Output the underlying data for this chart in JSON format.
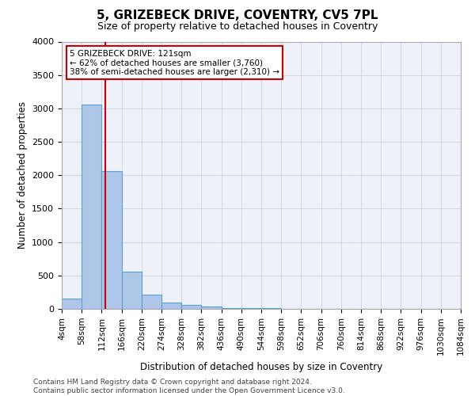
{
  "title": "5, GRIZEBECK DRIVE, COVENTRY, CV5 7PL",
  "subtitle": "Size of property relative to detached houses in Coventry",
  "xlabel": "Distribution of detached houses by size in Coventry",
  "ylabel": "Number of detached properties",
  "bar_values": [
    150,
    3060,
    2060,
    560,
    215,
    90,
    60,
    40,
    15,
    10,
    8,
    5,
    4,
    3,
    3,
    2,
    2,
    2,
    2,
    2
  ],
  "bin_edges": [
    4,
    58,
    112,
    166,
    220,
    274,
    328,
    382,
    436,
    490,
    544,
    598,
    652,
    706,
    760,
    814,
    868,
    922,
    976,
    1030,
    1084
  ],
  "tick_labels": [
    "4sqm",
    "58sqm",
    "112sqm",
    "166sqm",
    "220sqm",
    "274sqm",
    "328sqm",
    "382sqm",
    "436sqm",
    "490sqm",
    "544sqm",
    "598sqm",
    "652sqm",
    "706sqm",
    "760sqm",
    "814sqm",
    "868sqm",
    "922sqm",
    "976sqm",
    "1030sqm",
    "1084sqm"
  ],
  "bar_color": "#aec6e8",
  "bar_edge_color": "#5a9fd4",
  "grid_color": "#d0d8e8",
  "background_color": "#eef2f8",
  "property_size": 121,
  "red_line_x": 121,
  "annotation_text1": "5 GRIZEBECK DRIVE: 121sqm",
  "annotation_text2": "← 62% of detached houses are smaller (3,760)",
  "annotation_text3": "38% of semi-detached houses are larger (2,310) →",
  "annotation_box_color": "#ffffff",
  "annotation_box_edge": "#cc0000",
  "red_line_color": "#cc0000",
  "ylim": [
    0,
    4000
  ],
  "yticks": [
    0,
    500,
    1000,
    1500,
    2000,
    2500,
    3000,
    3500,
    4000
  ],
  "footer1": "Contains HM Land Registry data © Crown copyright and database right 2024.",
  "footer2": "Contains public sector information licensed under the Open Government Licence v3.0."
}
